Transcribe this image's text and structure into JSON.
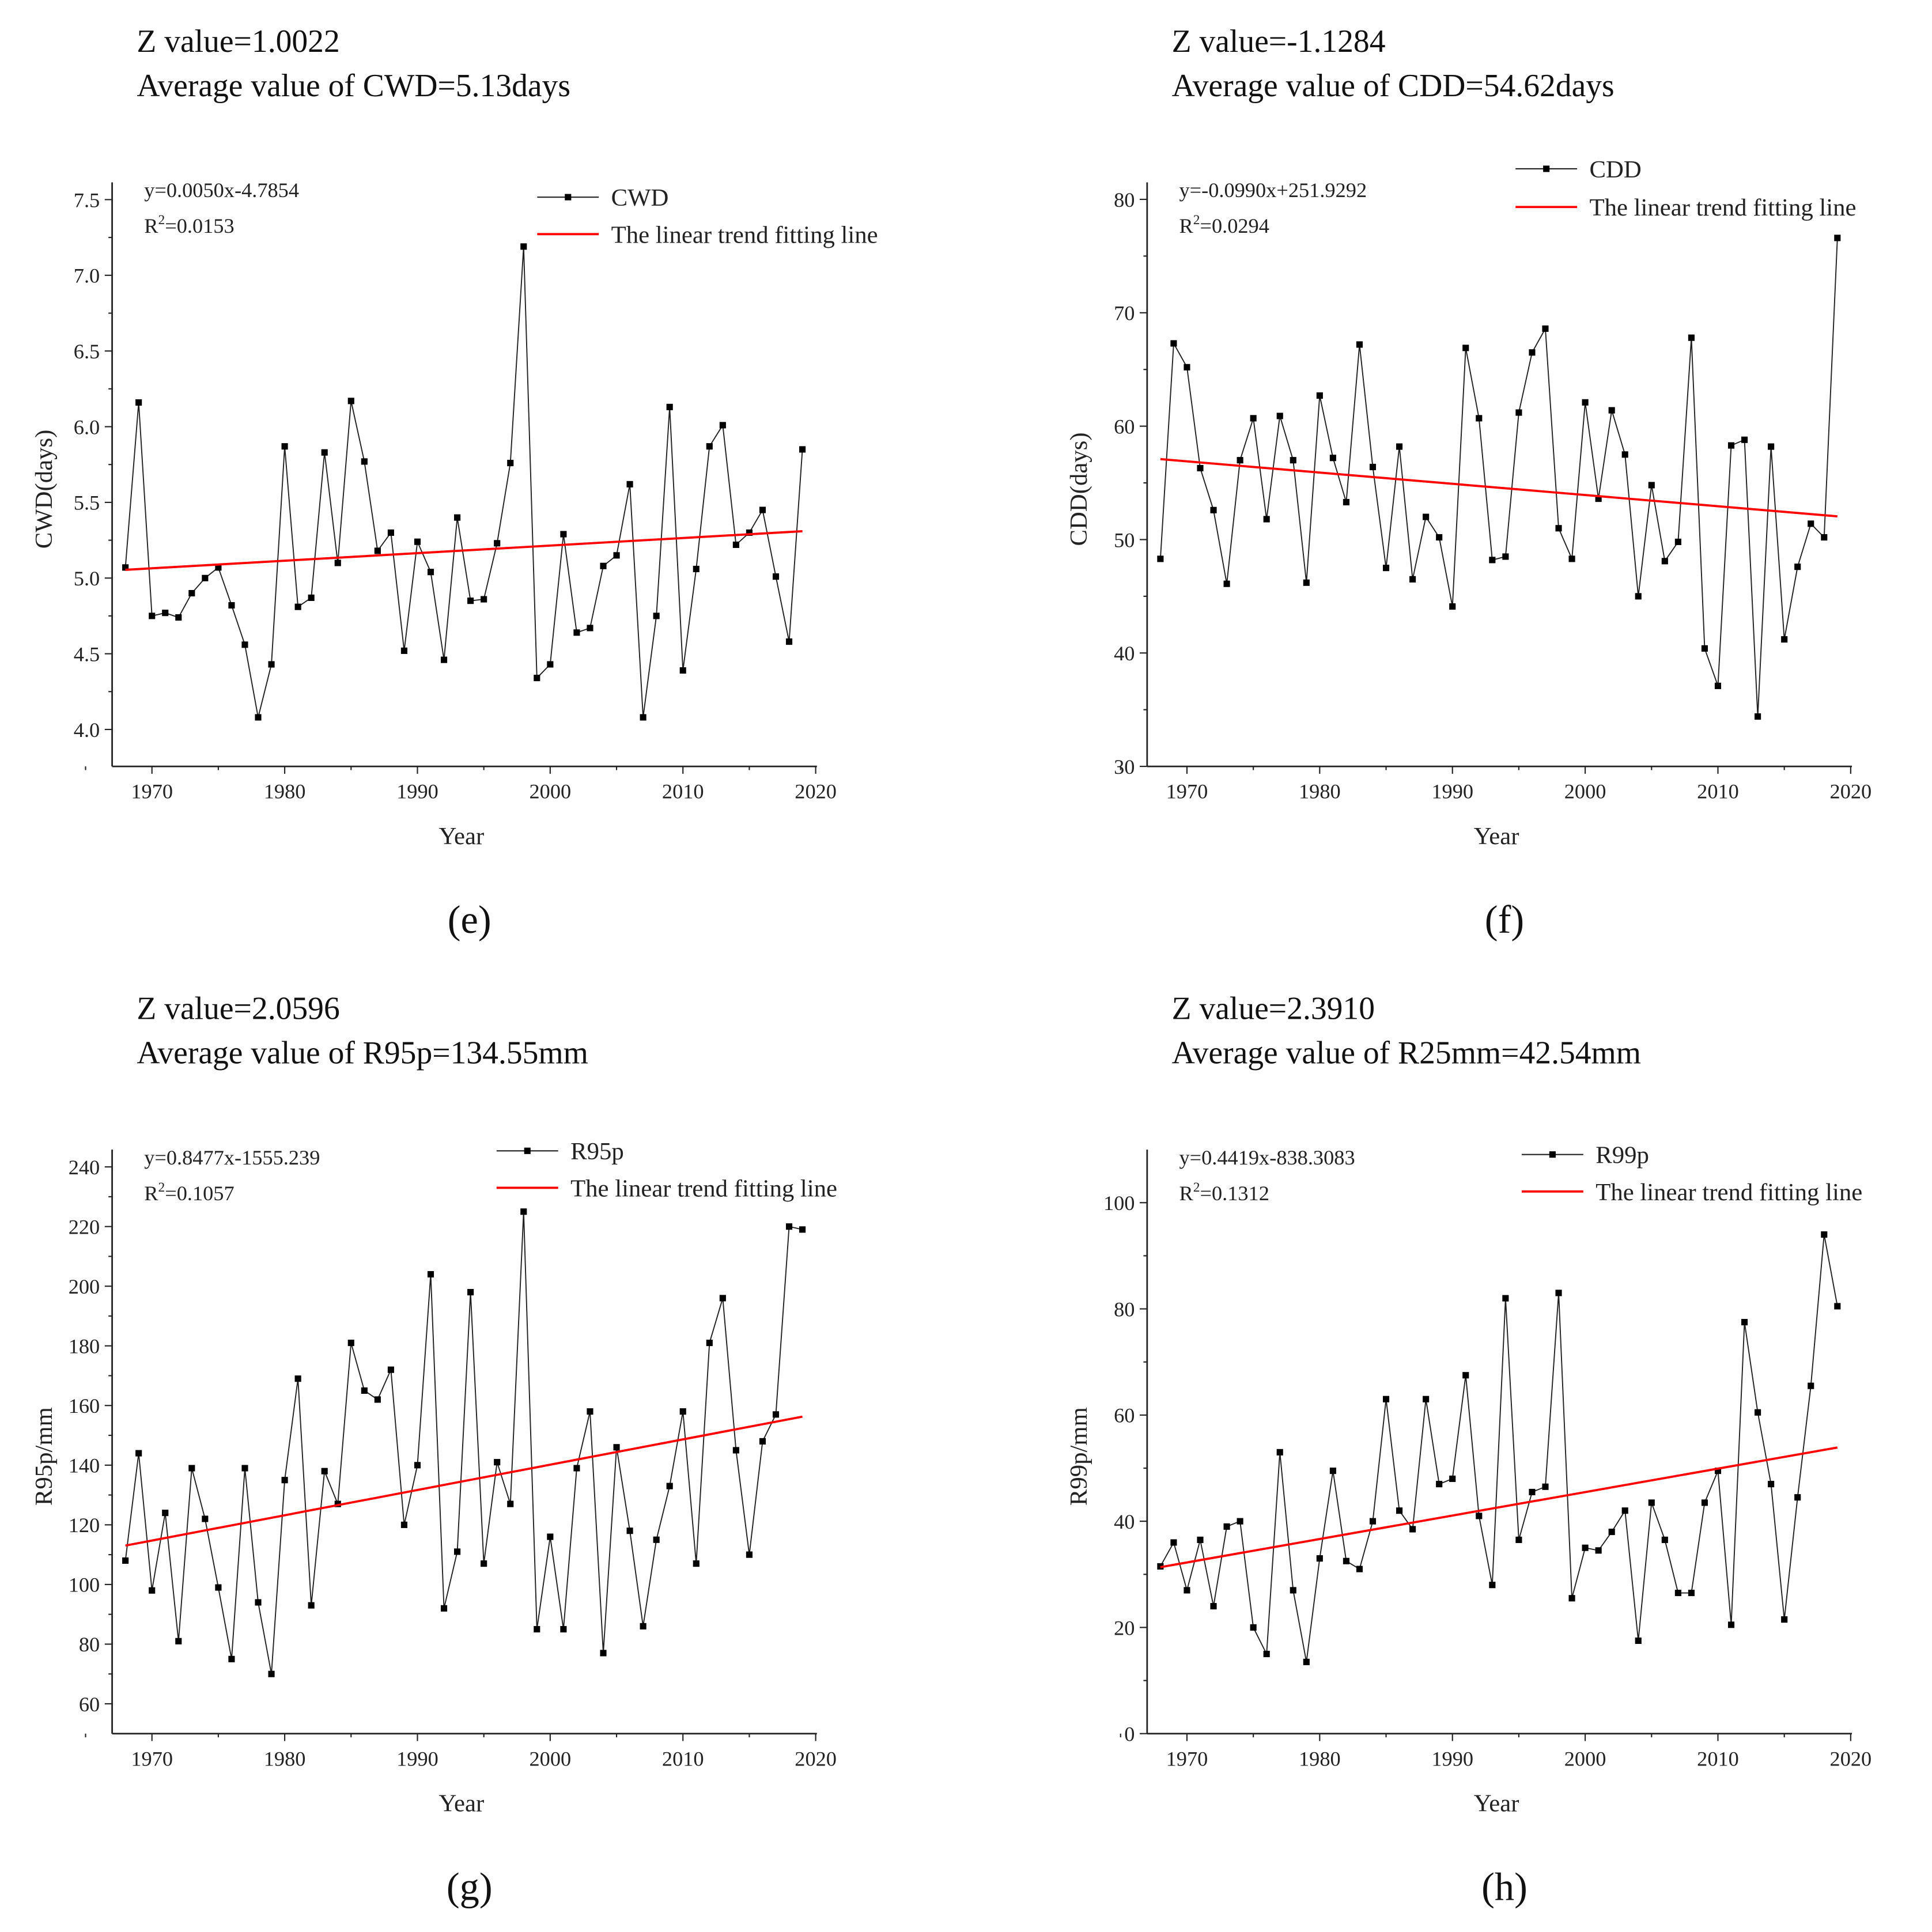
{
  "chart_data": [
    {
      "type": "line",
      "panel": "(e)",
      "z_text": "Z value=1.0022",
      "avg_text": "Average value of CWD=5.13days",
      "xlabel": "Year",
      "ylabel": "CWD(days)",
      "xlim": [
        1967,
        2020
      ],
      "ylim": [
        3.756,
        7.614
      ],
      "xticks": [
        1970,
        1980,
        1990,
        2000,
        2010,
        2020
      ],
      "yticks": [
        "4.0",
        "4.5",
        "5.0",
        "5.5",
        "6.0",
        "6.5",
        "7.0",
        "7.5"
      ],
      "equation": "y=0.0050x-4.7854",
      "r2_label": "R",
      "r2_value": "=0.0153",
      "slope": 0.005,
      "intercept": -4.7854,
      "legend": {
        "series": "CWD",
        "trend": "The linear trend fitting line"
      },
      "x_start": 1968,
      "values": [
        5.07,
        6.16,
        4.75,
        4.77,
        4.74,
        4.9,
        5.0,
        5.07,
        4.82,
        4.56,
        4.08,
        4.43,
        5.87,
        4.81,
        4.87,
        5.83,
        5.1,
        6.17,
        5.77,
        5.18,
        5.3,
        4.52,
        5.24,
        5.04,
        4.46,
        5.4,
        4.85,
        4.86,
        5.23,
        5.76,
        7.19,
        4.34,
        4.43,
        5.29,
        4.64,
        4.67,
        5.08,
        5.15,
        5.62,
        4.08,
        4.75,
        6.13,
        4.39,
        5.06,
        5.87,
        6.01,
        5.22,
        5.3,
        5.45,
        5.01,
        4.58,
        5.85
      ]
    },
    {
      "type": "line",
      "panel": "(f)",
      "z_text": "Z value=-1.1284",
      "avg_text": "Average value of CDD=54.62days",
      "xlabel": "Year",
      "ylabel": "CDD(days)",
      "xlim": [
        1967,
        2020
      ],
      "ylim": [
        30,
        81.5
      ],
      "xticks": [
        1970,
        1980,
        1990,
        2000,
        2010,
        2020
      ],
      "yticks": [
        "30",
        "40",
        "50",
        "60",
        "70",
        "80"
      ],
      "equation": "y=-0.0990x+251.9292",
      "r2_label": "R",
      "r2_value": "=0.0294",
      "slope": -0.099,
      "intercept": 251.9292,
      "legend": {
        "series": "CDD",
        "trend": "The linear trend fitting line"
      },
      "x_start": 1968,
      "values": [
        48.3,
        67.3,
        65.2,
        56.3,
        52.6,
        46.1,
        57.0,
        60.7,
        51.8,
        60.9,
        57.0,
        46.2,
        62.7,
        57.2,
        53.3,
        67.2,
        56.4,
        47.5,
        58.2,
        46.5,
        52.0,
        50.2,
        44.1,
        66.9,
        60.7,
        48.2,
        48.5,
        61.2,
        66.5,
        68.6,
        51.0,
        48.3,
        62.1,
        53.6,
        61.4,
        57.5,
        45.0,
        54.8,
        48.1,
        49.8,
        67.8,
        40.4,
        37.1,
        58.3,
        58.8,
        34.4,
        58.2,
        41.2,
        47.6,
        51.4,
        50.2,
        76.6
      ]
    },
    {
      "type": "line",
      "panel": "(g)",
      "z_text": "Z value=2.0596",
      "avg_text": "Average value of R95p=134.55mm",
      "xlabel": "Year",
      "ylabel": "R95p/mm",
      "xlim": [
        1967,
        2020
      ],
      "ylim": [
        50,
        245.8
      ],
      "xticks": [
        1970,
        1980,
        1990,
        2000,
        2010,
        2020
      ],
      "yticks": [
        "60",
        "80",
        "100",
        "120",
        "140",
        "160",
        "180",
        "200",
        "220",
        "240"
      ],
      "equation": "y=0.8477x-1555.239",
      "r2_label": "R",
      "r2_value": "=0.1057",
      "slope": 0.8477,
      "intercept": -1555.239,
      "legend": {
        "series": "R95p",
        "trend": "The linear trend fitting line"
      },
      "x_start": 1968,
      "values": [
        108,
        144,
        98,
        124,
        81,
        139,
        122,
        99,
        75,
        139,
        94,
        70,
        135,
        169,
        93,
        138,
        127,
        181,
        165,
        162,
        172,
        120,
        140,
        204,
        92,
        111,
        198,
        107,
        141,
        127,
        225,
        85,
        116,
        85,
        139,
        158,
        77,
        146,
        118,
        86,
        115,
        133,
        158,
        107,
        181,
        196,
        145,
        110,
        148,
        157,
        220,
        219
      ]
    },
    {
      "type": "line",
      "panel": "(h)",
      "z_text": "Z value=2.3910",
      "avg_text": "Average value  of R25mm=42.54mm",
      "xlabel": "Year",
      "ylabel": "R99p/mm",
      "xlim": [
        1967,
        2020
      ],
      "ylim": [
        0,
        110
      ],
      "xticks": [
        1970,
        1980,
        1990,
        2000,
        2010,
        2020
      ],
      "yticks": [
        "0",
        "20",
        "40",
        "60",
        "80",
        "100"
      ],
      "equation": "y=0.4419x-838.3083",
      "r2_label": "R",
      "r2_value": "=0.1312",
      "slope": 0.4419,
      "intercept": -838.3083,
      "legend": {
        "series": "R99p",
        "trend": "The linear trend fitting line"
      },
      "x_start": 1968,
      "values": [
        31.5,
        36,
        27,
        36.5,
        24,
        39,
        40,
        20,
        15,
        53,
        27,
        13.5,
        33,
        49.5,
        32.5,
        31,
        40,
        63,
        42,
        38.5,
        63,
        47,
        48,
        67.5,
        41,
        28,
        82,
        36.5,
        45.5,
        46.5,
        83,
        25.5,
        35,
        34.5,
        38,
        42,
        17.5,
        43.5,
        36.5,
        26.5,
        26.5,
        43.5,
        49.5,
        20.5,
        77.5,
        60.5,
        47,
        21.5,
        44.5,
        65.5,
        94,
        80.5
      ]
    }
  ],
  "colors": {
    "series": "#222222",
    "trend": "#ff0000"
  }
}
